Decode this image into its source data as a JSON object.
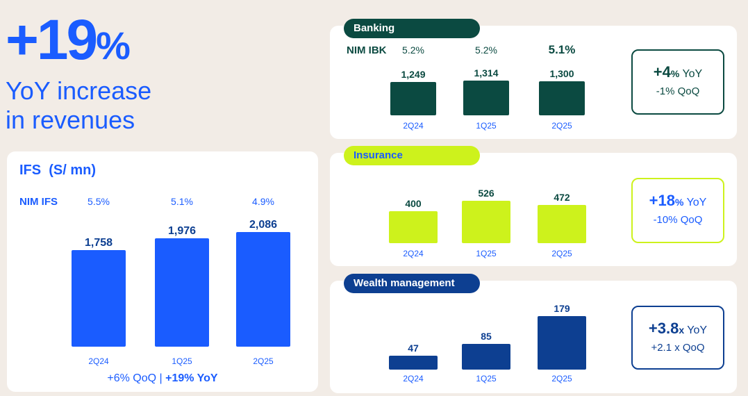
{
  "headline": {
    "value": "+19",
    "pct": "%",
    "line1": "YoY increase",
    "line2": "in revenues"
  },
  "colors": {
    "blue": "#1a5cff",
    "banking": "#0b4a41",
    "insurance": "#cdf21c",
    "wealth": "#0d3f91",
    "bg": "#f2ece6",
    "label": "#1a5cff"
  },
  "ifs": {
    "title": "IFS",
    "unit": "(S/ mn)",
    "nim_label": "NIM IFS",
    "footer_qoq": "+6% QoQ | ",
    "footer_yoy": "+19% YoY"
  },
  "banking": {
    "label": "Banking",
    "nim_label": "NIM IBK",
    "kpi_main": "+4",
    "kpi_unit": "%",
    "kpi_yoy": " YoY",
    "kpi_qoq": "-1% QoQ"
  },
  "insurance": {
    "label": "Insurance",
    "kpi_main": "+18",
    "kpi_unit": "%",
    "kpi_yoy": " YoY",
    "kpi_qoq": "-10% QoQ"
  },
  "wealth": {
    "label": "Wealth management",
    "kpi_main": "+3.8",
    "kpi_unit": "x",
    "kpi_yoy": " YoY",
    "kpi_qoq": "+2.1 x QoQ"
  },
  "chart_data": [
    {
      "id": "ifs",
      "type": "bar",
      "title": "IFS (S/ mn)",
      "categories": [
        "2Q24",
        "1Q25",
        "2Q25"
      ],
      "values": [
        1758,
        1976,
        2086
      ],
      "value_labels": [
        "1,758",
        "1,976",
        "2,086"
      ],
      "nim": [
        "5.5%",
        "5.1%",
        "4.9%"
      ],
      "ylim": [
        0,
        2086
      ]
    },
    {
      "id": "banking",
      "type": "bar",
      "title": "Banking",
      "categories": [
        "2Q24",
        "1Q25",
        "2Q25"
      ],
      "values": [
        1249,
        1314,
        1300
      ],
      "value_labels": [
        "1,249",
        "1,314",
        "1,300"
      ],
      "nim": [
        "5.2%",
        "5.2%",
        "5.1%"
      ],
      "ylim": [
        0,
        1314
      ]
    },
    {
      "id": "insurance",
      "type": "bar",
      "title": "Insurance",
      "categories": [
        "2Q24",
        "1Q25",
        "2Q25"
      ],
      "values": [
        400,
        526,
        472
      ],
      "value_labels": [
        "400",
        "526",
        "472"
      ],
      "ylim": [
        0,
        526
      ]
    },
    {
      "id": "wealth",
      "type": "bar",
      "title": "Wealth management",
      "categories": [
        "2Q24",
        "1Q25",
        "2Q25"
      ],
      "values": [
        47,
        85,
        179
      ],
      "value_labels": [
        "47",
        "85",
        "179"
      ],
      "ylim": [
        0,
        179
      ]
    }
  ]
}
